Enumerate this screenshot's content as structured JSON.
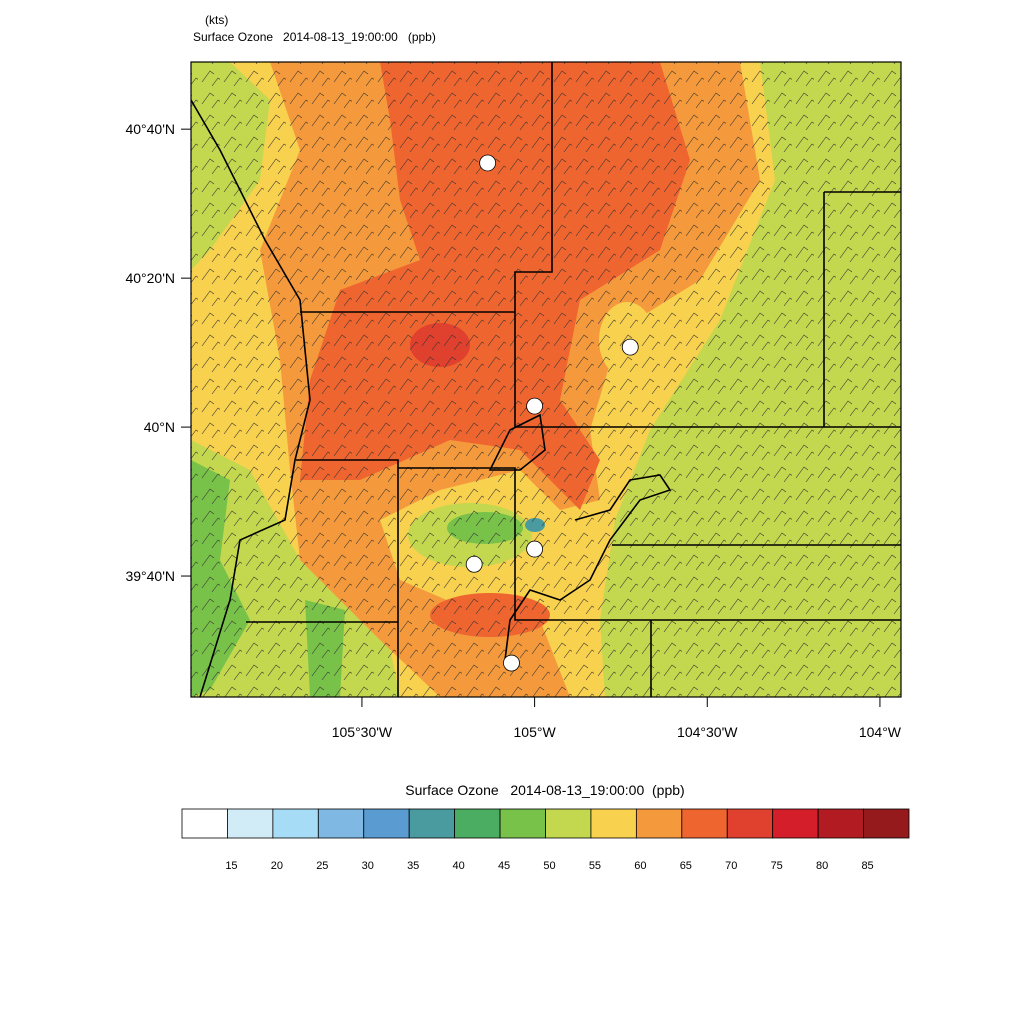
{
  "header": {
    "units": "(kts)",
    "title": "Surface Ozone   2014-08-13_19:00:00   (ppb)"
  },
  "map": {
    "xlim": [
      -105.995,
      -103.939
    ],
    "ylim": [
      39.396,
      40.817
    ],
    "xticks": [
      {
        "value": -105.5,
        "label": "105°30'W"
      },
      {
        "value": -105,
        "label": "105°W"
      },
      {
        "value": -104.5,
        "label": "104°30'W"
      },
      {
        "value": -104,
        "label": "104°W"
      }
    ],
    "yticks": [
      {
        "value": 39.6667,
        "label": "39°40'N"
      },
      {
        "value": 40,
        "label": "40°N"
      },
      {
        "value": 40.3333,
        "label": "40°20'N"
      },
      {
        "value": 40.6667,
        "label": "40°40'N"
      }
    ],
    "stations": {
      "lon": [
        -105.136,
        -104.723,
        -105.0,
        -105.0,
        -105.175,
        -105.067
      ],
      "lat": [
        40.591,
        40.179,
        40.047,
        39.727,
        39.693,
        39.472
      ]
    }
  },
  "colorbar": {
    "title": "Surface Ozone   2014-08-13_19:00:00  (ppb)",
    "levels": [
      15,
      20,
      25,
      30,
      35,
      40,
      45,
      50,
      55,
      60,
      65,
      70,
      75,
      80,
      85
    ],
    "colors": [
      "#ffffff",
      "#d2ecf7",
      "#a6dcf5",
      "#7fb9e3",
      "#5a9bd1",
      "#4a9ba0",
      "#4aad62",
      "#79c24a",
      "#c3d84e",
      "#f8d14e",
      "#f59a3c",
      "#ef6530",
      "#e0402e",
      "#d41f2a",
      "#b31b22",
      "#951a1c"
    ]
  }
}
